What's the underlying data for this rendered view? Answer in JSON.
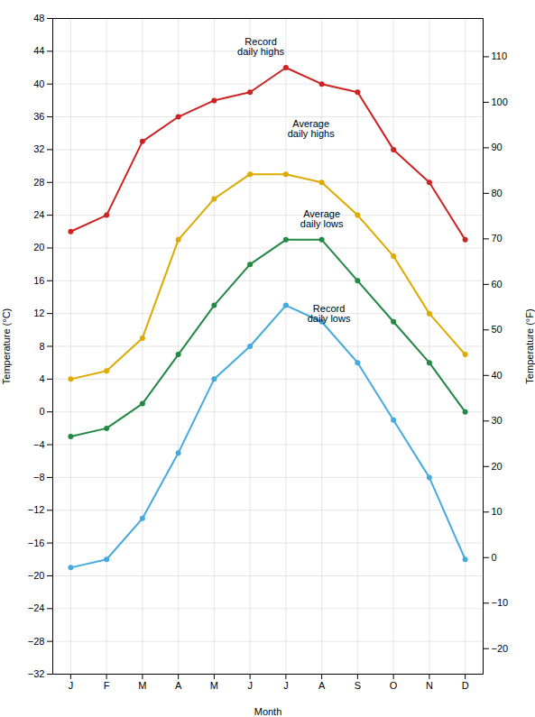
{
  "chart_data": {
    "type": "line",
    "categories": [
      "J",
      "F",
      "M",
      "A",
      "M",
      "J",
      "J",
      "A",
      "S",
      "O",
      "N",
      "D"
    ],
    "series": [
      {
        "name": "Record\ndaily highs",
        "color": "#cc2222",
        "marker": "circle",
        "values": [
          22,
          24,
          33,
          36,
          38,
          39,
          42,
          40,
          39,
          32,
          28,
          21
        ]
      },
      {
        "name": "Average\ndaily highs",
        "color": "#ddaa00",
        "marker": "circle",
        "values": [
          4,
          5,
          9,
          21,
          26,
          29,
          29,
          28,
          24,
          19,
          12,
          7
        ]
      },
      {
        "name": "Average\ndaily lows",
        "color": "#228844",
        "marker": "circle",
        "values": [
          -3,
          -2,
          1,
          7,
          13,
          18,
          21,
          21,
          16,
          11,
          6,
          0
        ]
      },
      {
        "name": "Record\ndaily lows",
        "color": "#44aadd",
        "marker": "circle",
        "values": [
          -19,
          -18,
          -13,
          -5,
          4,
          8,
          13,
          11,
          6,
          -1,
          -8,
          -18
        ]
      }
    ],
    "annotations": [
      {
        "text": "Record\ndaily highs",
        "x": 5.3,
        "y": 43.5
      },
      {
        "text": "Average\ndaily highs",
        "x": 6.7,
        "y": 33.5
      },
      {
        "text": "Average\ndaily lows",
        "x": 7.0,
        "y": 22.5
      },
      {
        "text": "Record\ndaily lows",
        "x": 7.2,
        "y": 11.0
      }
    ],
    "xlabel": "Month",
    "ylabel": "Temperature (°C)",
    "y2label": "Temperature (°F)",
    "ylim": [
      -32,
      48
    ],
    "yticks": [
      -32,
      -28,
      -24,
      -20,
      -16,
      -12,
      -8,
      -4,
      0,
      4,
      8,
      12,
      16,
      20,
      24,
      28,
      32,
      36,
      40,
      44,
      48
    ],
    "y2lim": [
      -25.6,
      118.4
    ],
    "y2ticks": [
      -20,
      -10,
      0,
      10,
      20,
      30,
      40,
      50,
      60,
      70,
      80,
      90,
      100,
      110
    ],
    "grid": true
  }
}
